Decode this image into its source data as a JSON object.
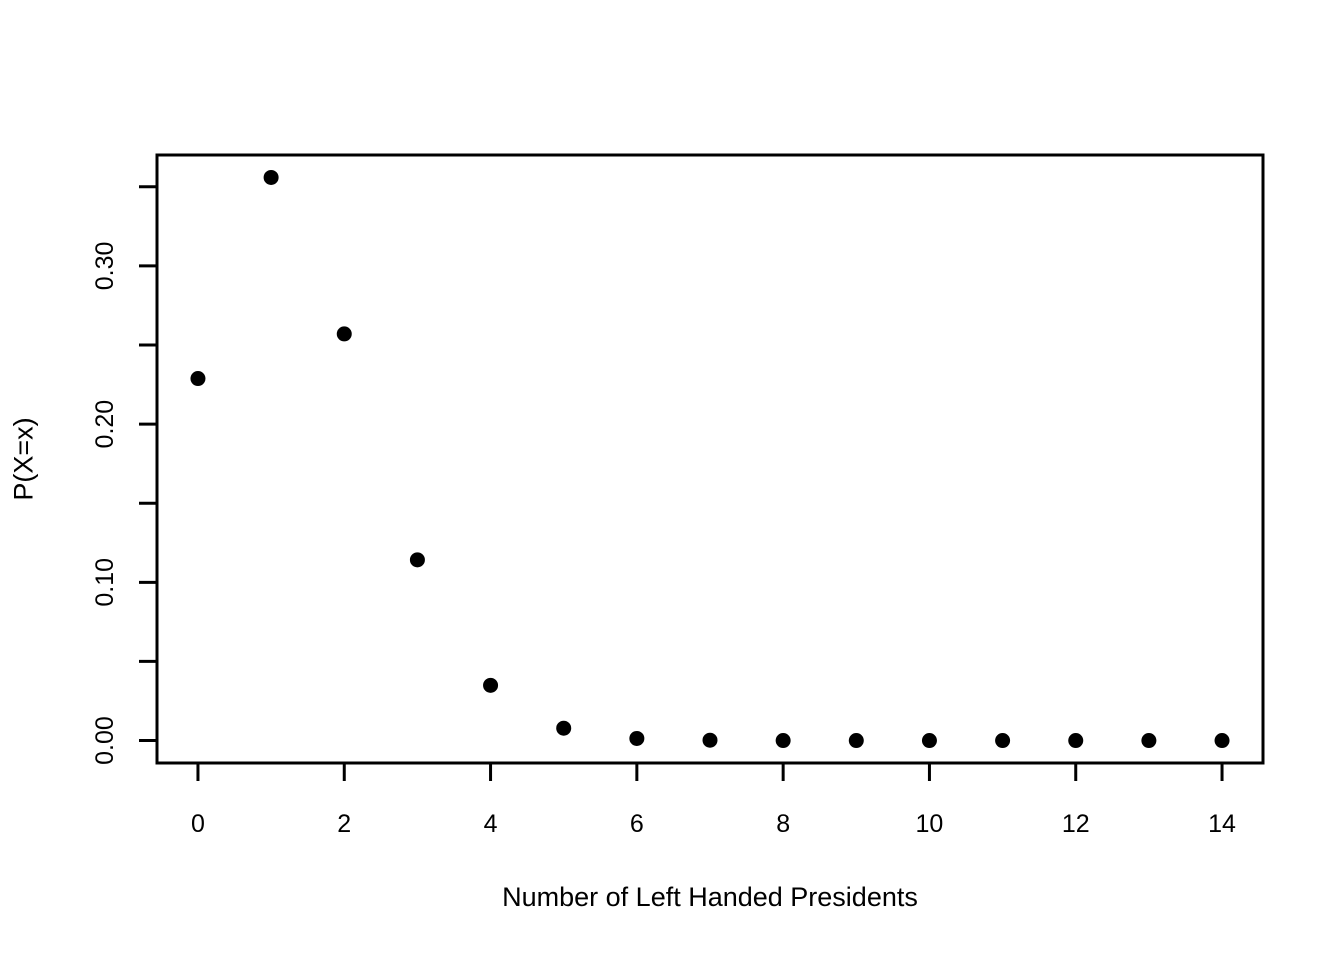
{
  "figure": {
    "background_color": "#ffffff",
    "foreground_color": "#000000"
  },
  "chart_data": {
    "type": "scatter",
    "title": "",
    "xlabel": "Number of Left Handed Presidents",
    "ylabel": "P(X=x)",
    "x": [
      0,
      1,
      2,
      3,
      4,
      5,
      6,
      7,
      8,
      9,
      10,
      11,
      12,
      13,
      14
    ],
    "y": [
      0.2288,
      0.3559,
      0.257,
      0.1142,
      0.0349,
      0.0078,
      0.0013,
      0.0002,
      0.0,
      0.0,
      0.0,
      0.0,
      0.0,
      0.0,
      0.0
    ],
    "xlim": [
      -0.56,
      14.56
    ],
    "ylim": [
      -0.0142,
      0.3701
    ],
    "x_ticks": [
      0,
      2,
      4,
      6,
      8,
      10,
      12,
      14
    ],
    "x_tick_labels": [
      "0",
      "2",
      "4",
      "6",
      "8",
      "10",
      "12",
      "14"
    ],
    "y_ticks": [
      0.0,
      0.05,
      0.1,
      0.15,
      0.2,
      0.25,
      0.3,
      0.35
    ],
    "y_tick_labels": [
      "0.00",
      "",
      "0.10",
      "",
      "0.20",
      "",
      "0.30",
      ""
    ],
    "grid": false,
    "legend": null,
    "point_style": "filled-circle",
    "point_color": "#000000",
    "point_radius_px": 7.5,
    "axis_color": "#000000"
  }
}
